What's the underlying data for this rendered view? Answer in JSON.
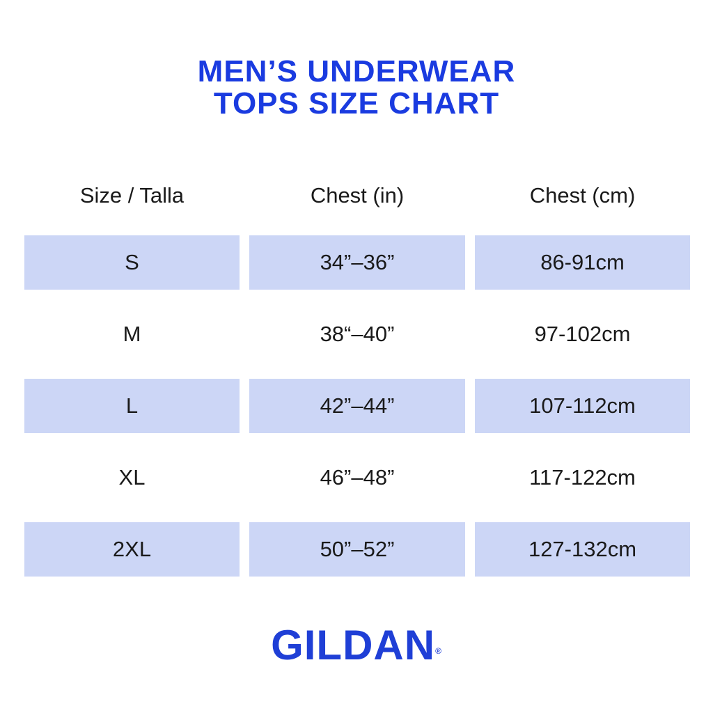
{
  "title": {
    "line1": "MEN’S UNDERWEAR",
    "line2": "TOPS SIZE CHART"
  },
  "table": {
    "headers": [
      "Size / Talla",
      "Chest (in)",
      "Chest (cm)"
    ],
    "rows": [
      [
        "S",
        "34”–36”",
        "86-91cm"
      ],
      [
        "M",
        "38“–40”",
        "97-102cm"
      ],
      [
        "L",
        "42”–44”",
        "107-112cm"
      ],
      [
        "XL",
        "46”–48”",
        "117-122cm"
      ],
      [
        "2XL",
        "50”–52”",
        "127-132cm"
      ]
    ],
    "shaded_rows": [
      0,
      2,
      4
    ]
  },
  "brand": {
    "name": "GILDAN",
    "mark": "®"
  },
  "colors": {
    "title": "#1a3be0",
    "shade": "#ccd6f6",
    "logo": "#1f3fd6"
  }
}
